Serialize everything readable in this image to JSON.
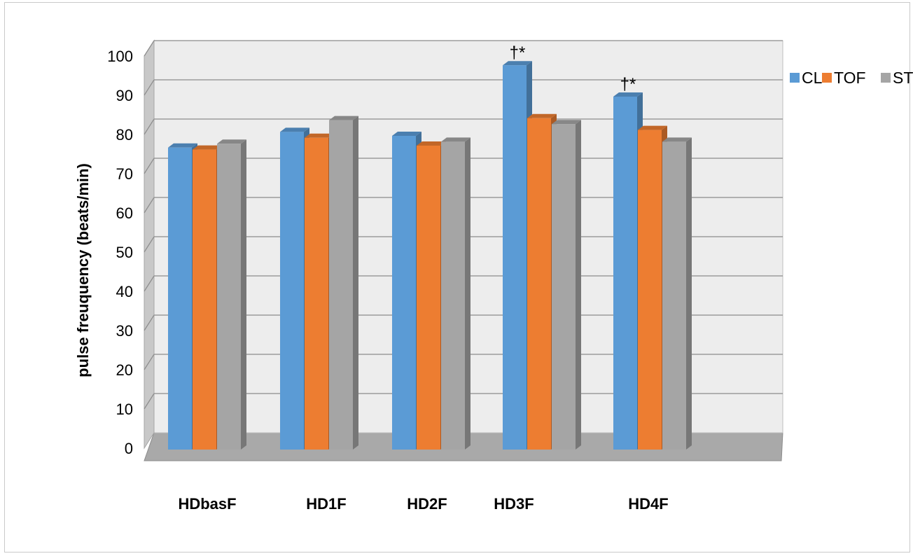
{
  "chart_data": {
    "type": "bar",
    "title": "",
    "xlabel": "",
    "ylabel": "pulse freuquency (beats/min)",
    "ylim": [
      0,
      100
    ],
    "yticks": [
      "0",
      "10",
      "20",
      "30",
      "40",
      "50",
      "60",
      "70",
      "80",
      "90",
      "100"
    ],
    "grid": true,
    "legend_position": "right",
    "categories": [
      "HDbasF",
      "HD1F",
      "HD2F",
      "HD3F",
      "HD4F"
    ],
    "series": [
      {
        "name": "CL",
        "color": "#5b9bd5",
        "values": [
          77,
          81,
          80,
          98,
          90
        ]
      },
      {
        "name": "TOF",
        "color": "#ed7d31",
        "values": [
          76.5,
          79.5,
          77.5,
          84.5,
          81.5
        ]
      },
      {
        "name": "ST",
        "color": "#a5a5a5",
        "values": [
          78,
          84,
          78.5,
          83,
          78.5
        ]
      }
    ],
    "annotations": [
      {
        "category": "HD3F",
        "series": "CL",
        "text": "†*"
      },
      {
        "category": "HD4F",
        "series": "CL",
        "text": "†*"
      }
    ]
  }
}
